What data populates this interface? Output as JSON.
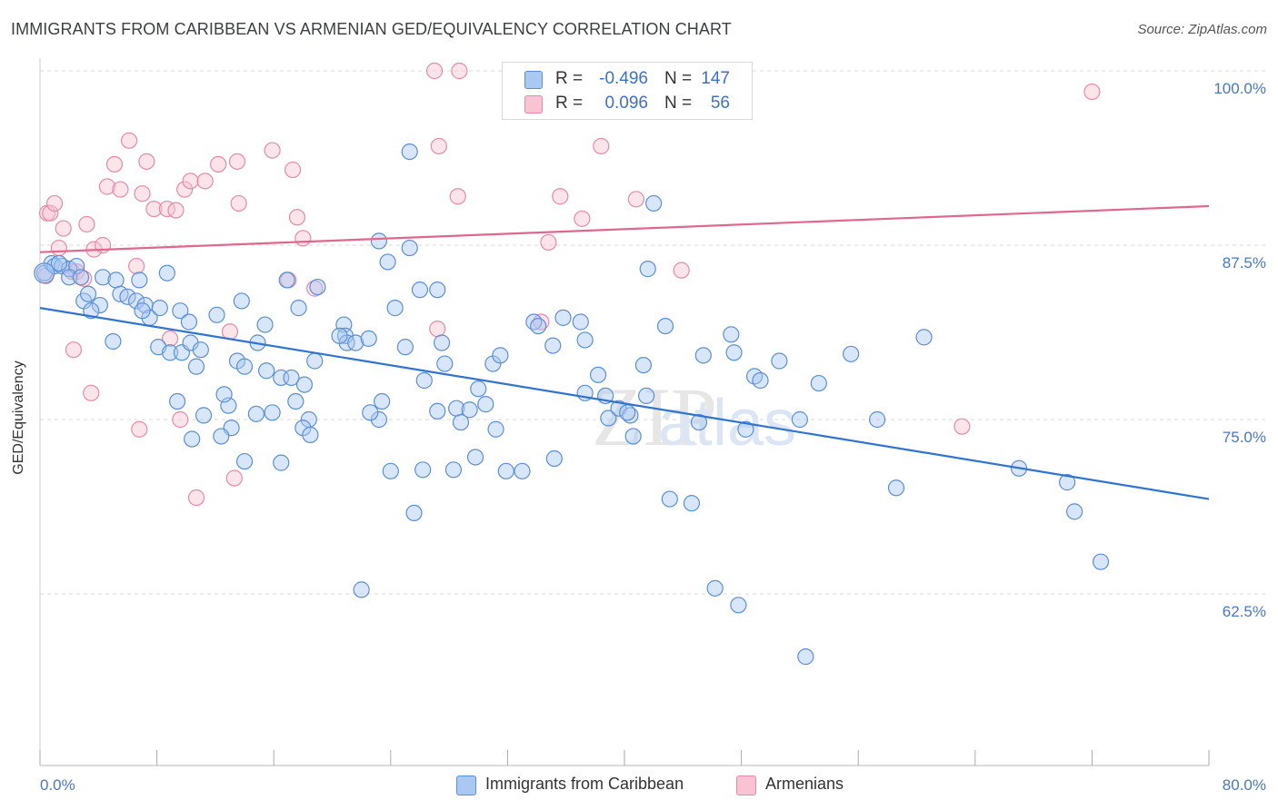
{
  "title": "IMMIGRANTS FROM CARIBBEAN VS ARMENIAN GED/EQUIVALENCY CORRELATION CHART",
  "source": "Source: ZipAtlas.com",
  "watermark": "ZIPatlas",
  "legend_top": {
    "rows": [
      {
        "r_label": "R =",
        "r_value": "-0.496",
        "n_label": "N =",
        "n_value": "147",
        "color": "#a9c8f2",
        "border": "#5b8fd6"
      },
      {
        "r_label": "R =",
        "r_value": "0.096",
        "n_label": "N =",
        "n_value": "56",
        "color": "#f8c3d3",
        "border": "#e88aa7"
      }
    ]
  },
  "legend_bottom": [
    {
      "label": "Immigrants from Caribbean",
      "color": "#a9c8f2",
      "border": "#5b8fd6"
    },
    {
      "label": "Armenians",
      "color": "#f8c3d3",
      "border": "#e88aa7"
    }
  ],
  "colors": {
    "blue_fill": "#a9c8f2",
    "blue_stroke": "#5b8fd6",
    "blue_line": "#2f74d0",
    "pink_fill": "#f8c3d3",
    "pink_stroke": "#e88aa7",
    "pink_line": "#e0688e",
    "tick_text": "#4a77c9",
    "grid": "#d9d9d9"
  },
  "chart_data": {
    "type": "scatter",
    "title": "IMMIGRANTS FROM CARIBBEAN VS ARMENIAN GED/EQUIVALENCY CORRELATION CHART",
    "xlabel": "",
    "ylabel": "GED/Equivalency",
    "xlim": [
      0,
      80
    ],
    "ylim": [
      53.5,
      101.5
    ],
    "x_tick_labels": [
      "0.0%",
      "80.0%"
    ],
    "y_ticks": [
      62.5,
      75.0,
      87.5,
      100.0
    ],
    "y_tick_labels": [
      "62.5%",
      "75.0%",
      "87.5%",
      "100.0%"
    ],
    "grid": "horizontal dashed",
    "legend": "top-center",
    "series": [
      {
        "name": "Immigrants from Caribbean",
        "trend": [
          [
            0,
            83.0
          ],
          [
            80,
            69.3
          ]
        ],
        "points": [
          [
            0.3,
            85.5
          ],
          [
            0.8,
            86.2
          ],
          [
            1.0,
            86.0
          ],
          [
            1.5,
            86.0
          ],
          [
            2.0,
            85.8
          ],
          [
            1.3,
            86.2
          ],
          [
            2.5,
            86.0
          ],
          [
            2.0,
            85.2
          ],
          [
            2.8,
            85.2
          ],
          [
            3.0,
            83.5
          ],
          [
            3.3,
            84.0
          ],
          [
            4.1,
            83.2
          ],
          [
            3.5,
            82.8
          ],
          [
            4.3,
            85.2
          ],
          [
            5.2,
            85.0
          ],
          [
            5.5,
            84.0
          ],
          [
            6.0,
            83.8
          ],
          [
            6.8,
            85.0
          ],
          [
            6.6,
            83.5
          ],
          [
            7.2,
            83.2
          ],
          [
            7.5,
            82.3
          ],
          [
            7.0,
            82.8
          ],
          [
            8.2,
            83.0
          ],
          [
            8.7,
            85.5
          ],
          [
            9.6,
            82.8
          ],
          [
            10.2,
            82.0
          ],
          [
            5.0,
            80.6
          ],
          [
            8.1,
            80.2
          ],
          [
            8.9,
            79.8
          ],
          [
            9.7,
            79.8
          ],
          [
            10.3,
            80.5
          ],
          [
            11.0,
            80.0
          ],
          [
            10.7,
            78.8
          ],
          [
            12.1,
            82.5
          ],
          [
            13.8,
            83.5
          ],
          [
            15.4,
            81.8
          ],
          [
            14.9,
            80.5
          ],
          [
            13.5,
            79.2
          ],
          [
            14.0,
            78.8
          ],
          [
            12.9,
            76.0
          ],
          [
            12.6,
            76.8
          ],
          [
            13.1,
            74.4
          ],
          [
            12.4,
            73.8
          ],
          [
            11.2,
            75.3
          ],
          [
            10.4,
            73.6
          ],
          [
            9.4,
            76.3
          ],
          [
            15.5,
            78.5
          ],
          [
            15.9,
            75.5
          ],
          [
            14.8,
            75.4
          ],
          [
            16.5,
            78.0
          ],
          [
            17.2,
            78.0
          ],
          [
            17.5,
            76.3
          ],
          [
            18.1,
            77.5
          ],
          [
            18.8,
            79.2
          ],
          [
            18.4,
            75.0
          ],
          [
            17.7,
            83.0
          ],
          [
            19.0,
            84.5
          ],
          [
            16.9,
            85.0
          ],
          [
            18.0,
            74.4
          ],
          [
            18.5,
            73.9
          ],
          [
            14.0,
            72.0
          ],
          [
            16.5,
            71.9
          ],
          [
            20.8,
            81.8
          ],
          [
            20.9,
            81.0
          ],
          [
            21.0,
            80.5
          ],
          [
            21.6,
            80.5
          ],
          [
            22.5,
            80.8
          ],
          [
            20.5,
            81.0
          ],
          [
            23.2,
            75.0
          ],
          [
            22.6,
            75.5
          ],
          [
            23.4,
            76.3
          ],
          [
            24.3,
            83.0
          ],
          [
            23.2,
            87.8
          ],
          [
            23.8,
            86.3
          ],
          [
            25.3,
            87.3
          ],
          [
            26.0,
            84.3
          ],
          [
            27.2,
            84.3
          ],
          [
            25.0,
            80.2
          ],
          [
            27.5,
            80.5
          ],
          [
            26.3,
            77.8
          ],
          [
            27.7,
            79.0
          ],
          [
            28.5,
            75.8
          ],
          [
            27.2,
            75.6
          ],
          [
            28.8,
            74.8
          ],
          [
            29.4,
            75.7
          ],
          [
            30.0,
            77.2
          ],
          [
            30.5,
            76.1
          ],
          [
            31.0,
            79.0
          ],
          [
            31.5,
            79.6
          ],
          [
            31.2,
            74.3
          ],
          [
            29.8,
            72.3
          ],
          [
            28.3,
            71.4
          ],
          [
            26.2,
            71.4
          ],
          [
            24.0,
            71.3
          ],
          [
            25.3,
            94.2
          ],
          [
            25.6,
            68.3
          ],
          [
            22.0,
            62.8
          ],
          [
            33.8,
            82.0
          ],
          [
            34.1,
            81.7
          ],
          [
            33.0,
            71.3
          ],
          [
            31.9,
            71.3
          ],
          [
            35.1,
            80.3
          ],
          [
            35.8,
            82.3
          ],
          [
            35.2,
            72.2
          ],
          [
            37.0,
            82.0
          ],
          [
            37.3,
            80.7
          ],
          [
            38.2,
            78.2
          ],
          [
            38.7,
            76.7
          ],
          [
            38.9,
            75.1
          ],
          [
            37.3,
            76.9
          ],
          [
            39.6,
            75.8
          ],
          [
            40.4,
            75.3
          ],
          [
            40.2,
            75.5
          ],
          [
            41.3,
            78.9
          ],
          [
            40.6,
            73.8
          ],
          [
            41.5,
            76.7
          ],
          [
            42.0,
            90.5
          ],
          [
            41.6,
            85.8
          ],
          [
            42.8,
            81.7
          ],
          [
            43.1,
            69.3
          ],
          [
            44.6,
            69.0
          ],
          [
            45.4,
            79.6
          ],
          [
            47.3,
            81.1
          ],
          [
            47.5,
            79.8
          ],
          [
            48.9,
            78.1
          ],
          [
            49.3,
            77.8
          ],
          [
            46.2,
            62.9
          ],
          [
            47.8,
            61.7
          ],
          [
            50.6,
            79.2
          ],
          [
            52.0,
            75.0
          ],
          [
            53.3,
            77.6
          ],
          [
            55.5,
            79.7
          ],
          [
            57.3,
            75.0
          ],
          [
            58.6,
            70.1
          ],
          [
            60.5,
            80.9
          ],
          [
            67.0,
            71.5
          ],
          [
            70.3,
            70.5
          ],
          [
            70.8,
            68.4
          ],
          [
            72.6,
            64.8
          ],
          [
            52.4,
            58.0
          ],
          [
            48.3,
            74.3
          ],
          [
            45.1,
            74.8
          ]
        ]
      },
      {
        "name": "Armenians",
        "trend": [
          [
            0,
            87.0
          ],
          [
            80,
            90.3
          ]
        ],
        "points": [
          [
            0.5,
            89.8
          ],
          [
            0.7,
            89.8
          ],
          [
            1.0,
            90.5
          ],
          [
            1.3,
            87.3
          ],
          [
            1.6,
            88.7
          ],
          [
            2.2,
            85.6
          ],
          [
            2.5,
            85.6
          ],
          [
            3.2,
            89.0
          ],
          [
            3.7,
            87.2
          ],
          [
            3.0,
            85.1
          ],
          [
            4.3,
            87.5
          ],
          [
            4.6,
            91.7
          ],
          [
            5.1,
            93.3
          ],
          [
            5.5,
            91.5
          ],
          [
            6.1,
            95.0
          ],
          [
            6.6,
            86.0
          ],
          [
            7.0,
            91.2
          ],
          [
            7.3,
            93.5
          ],
          [
            7.8,
            90.1
          ],
          [
            8.7,
            90.1
          ],
          [
            9.3,
            90.0
          ],
          [
            9.9,
            91.5
          ],
          [
            10.3,
            92.1
          ],
          [
            11.3,
            92.1
          ],
          [
            12.2,
            93.3
          ],
          [
            13.5,
            93.5
          ],
          [
            13.6,
            90.5
          ],
          [
            15.9,
            94.3
          ],
          [
            17.0,
            85.0
          ],
          [
            17.3,
            92.9
          ],
          [
            17.6,
            89.5
          ],
          [
            18.0,
            88.0
          ],
          [
            18.8,
            84.4
          ],
          [
            13.0,
            81.3
          ],
          [
            8.9,
            80.8
          ],
          [
            9.6,
            75.0
          ],
          [
            10.7,
            69.4
          ],
          [
            13.3,
            70.8
          ],
          [
            6.8,
            74.3
          ],
          [
            3.5,
            76.9
          ],
          [
            2.3,
            80.0
          ],
          [
            27.2,
            81.5
          ],
          [
            27.3,
            94.6
          ],
          [
            28.6,
            91.0
          ],
          [
            34.3,
            82.0
          ],
          [
            35.6,
            91.0
          ],
          [
            34.8,
            87.7
          ],
          [
            37.1,
            89.4
          ],
          [
            38.4,
            94.6
          ],
          [
            40.8,
            90.8
          ],
          [
            43.9,
            85.7
          ],
          [
            63.1,
            74.5
          ],
          [
            72.0,
            98.5
          ],
          [
            27.0,
            100.0
          ],
          [
            28.7,
            100.0
          ],
          [
            0.4,
            85.3
          ]
        ]
      }
    ]
  }
}
